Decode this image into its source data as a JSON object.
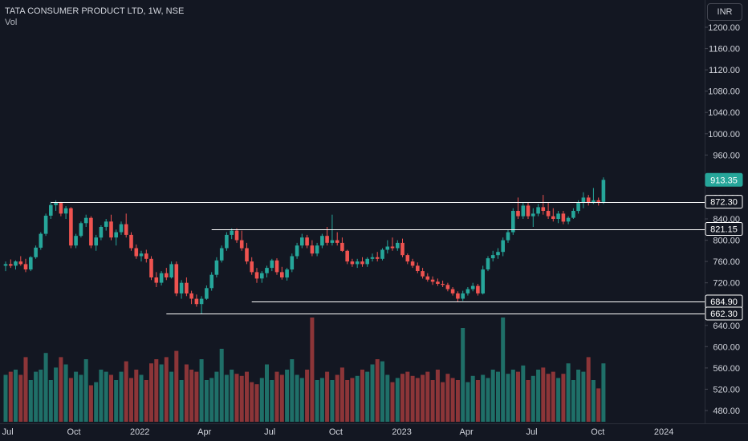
{
  "legend": {
    "symbol": "TATA CONSUMER PRODUCT LTD, 1W, NSE",
    "volume_label": "Vol"
  },
  "currency_button": "INR",
  "colors": {
    "background": "#131722",
    "up": "#26a69a",
    "down": "#ef5350",
    "vol_up": "#1f6f68",
    "vol_down": "#8c3538",
    "level_line": "#ffffff",
    "axis_text": "#d1d4dc"
  },
  "chart_data": {
    "type": "candlestick",
    "interval": "1W",
    "y_axis": {
      "ticks": [
        "1200.00",
        "1160.00",
        "1120.00",
        "1080.00",
        "1040.00",
        "1000.00",
        "960.00",
        "920.00",
        "880.00",
        "840.00",
        "800.00",
        "760.00",
        "720.00",
        "680.00",
        "640.00",
        "600.00",
        "560.00",
        "520.00",
        "480.00"
      ],
      "range": [
        470,
        1230
      ],
      "position": "right"
    },
    "x_axis": {
      "labels": [
        "Jul",
        "Oct",
        "2022",
        "Apr",
        "Jul",
        "Oct",
        "2023",
        "Apr",
        "Jul",
        "Oct",
        "2024"
      ]
    },
    "price_tags": [
      {
        "value": "913.35",
        "type": "last_price"
      },
      {
        "value": "872.30",
        "type": "level"
      },
      {
        "value": "821.15",
        "type": "level"
      },
      {
        "value": "684.90",
        "type": "level"
      },
      {
        "value": "662.30",
        "type": "level"
      }
    ],
    "horizontal_levels": [
      {
        "price": 872.3,
        "from_date": "2021-08-30"
      },
      {
        "price": 821.15,
        "from_date": "2022-04-11"
      },
      {
        "price": 684.9,
        "from_date": "2022-06-06"
      },
      {
        "price": 662.3,
        "from_date": "2022-02-07"
      }
    ],
    "ohlc": [
      [
        "2021-06-28",
        752,
        760,
        742,
        755
      ],
      [
        "2021-07-05",
        755,
        764,
        748,
        752
      ],
      [
        "2021-07-12",
        752,
        762,
        745,
        760
      ],
      [
        "2021-07-19",
        760,
        770,
        752,
        755
      ],
      [
        "2021-07-26",
        755,
        765,
        740,
        745
      ],
      [
        "2021-08-02",
        745,
        770,
        742,
        768
      ],
      [
        "2021-08-09",
        768,
        790,
        765,
        786
      ],
      [
        "2021-08-16",
        786,
        815,
        782,
        812
      ],
      [
        "2021-08-23",
        812,
        850,
        808,
        846
      ],
      [
        "2021-08-30",
        846,
        872,
        840,
        866
      ],
      [
        "2021-09-06",
        866,
        875,
        855,
        870
      ],
      [
        "2021-09-13",
        870,
        872,
        845,
        850
      ],
      [
        "2021-09-20",
        850,
        864,
        840,
        860
      ],
      [
        "2021-09-27",
        860,
        862,
        785,
        790
      ],
      [
        "2021-10-04",
        790,
        812,
        785,
        808
      ],
      [
        "2021-10-11",
        808,
        835,
        805,
        832
      ],
      [
        "2021-10-18",
        832,
        848,
        825,
        842
      ],
      [
        "2021-10-25",
        842,
        845,
        785,
        790
      ],
      [
        "2021-11-01",
        790,
        810,
        780,
        805
      ],
      [
        "2021-11-08",
        805,
        828,
        800,
        825
      ],
      [
        "2021-11-15",
        825,
        840,
        818,
        835
      ],
      [
        "2021-11-22",
        835,
        848,
        800,
        805
      ],
      [
        "2021-11-29",
        805,
        820,
        790,
        815
      ],
      [
        "2021-12-06",
        815,
        835,
        810,
        830
      ],
      [
        "2021-12-13",
        830,
        850,
        805,
        810
      ],
      [
        "2021-12-20",
        810,
        815,
        780,
        785
      ],
      [
        "2021-12-27",
        785,
        792,
        765,
        770
      ],
      [
        "2022-01-03",
        770,
        780,
        760,
        775
      ],
      [
        "2022-01-10",
        775,
        782,
        758,
        765
      ],
      [
        "2022-01-17",
        765,
        770,
        725,
        730
      ],
      [
        "2022-01-24",
        730,
        740,
        712,
        720
      ],
      [
        "2022-01-31",
        720,
        742,
        715,
        738
      ],
      [
        "2022-02-07",
        738,
        748,
        725,
        730
      ],
      [
        "2022-02-14",
        730,
        760,
        728,
        755
      ],
      [
        "2022-02-21",
        755,
        760,
        695,
        700
      ],
      [
        "2022-02-28",
        700,
        725,
        690,
        720
      ],
      [
        "2022-03-07",
        720,
        730,
        695,
        700
      ],
      [
        "2022-03-14",
        700,
        705,
        680,
        690
      ],
      [
        "2022-03-21",
        690,
        698,
        675,
        680
      ],
      [
        "2022-03-28",
        680,
        695,
        662,
        690
      ],
      [
        "2022-04-04",
        690,
        715,
        688,
        710
      ],
      [
        "2022-04-11",
        710,
        740,
        705,
        735
      ],
      [
        "2022-04-18",
        735,
        768,
        730,
        762
      ],
      [
        "2022-04-25",
        762,
        790,
        758,
        785
      ],
      [
        "2022-05-02",
        785,
        815,
        780,
        810
      ],
      [
        "2022-05-09",
        810,
        822,
        802,
        818
      ],
      [
        "2022-05-16",
        818,
        822,
        795,
        800
      ],
      [
        "2022-05-23",
        800,
        818,
        780,
        785
      ],
      [
        "2022-05-30",
        785,
        795,
        755,
        760
      ],
      [
        "2022-06-06",
        760,
        768,
        735,
        740
      ],
      [
        "2022-06-13",
        740,
        748,
        720,
        728
      ],
      [
        "2022-06-20",
        728,
        742,
        720,
        738
      ],
      [
        "2022-06-27",
        738,
        752,
        730,
        748
      ],
      [
        "2022-07-04",
        748,
        765,
        742,
        762
      ],
      [
        "2022-07-11",
        762,
        766,
        735,
        740
      ],
      [
        "2022-07-18",
        740,
        750,
        726,
        730
      ],
      [
        "2022-07-25",
        730,
        748,
        724,
        745
      ],
      [
        "2022-08-01",
        745,
        775,
        740,
        770
      ],
      [
        "2022-08-08",
        770,
        795,
        765,
        790
      ],
      [
        "2022-08-15",
        790,
        812,
        785,
        805
      ],
      [
        "2022-08-22",
        805,
        810,
        785,
        790
      ],
      [
        "2022-08-29",
        790,
        800,
        770,
        775
      ],
      [
        "2022-09-05",
        775,
        795,
        770,
        790
      ],
      [
        "2022-09-12",
        790,
        812,
        785,
        808
      ],
      [
        "2022-09-19",
        808,
        825,
        790,
        795
      ],
      [
        "2022-09-26",
        795,
        848,
        790,
        800
      ],
      [
        "2022-10-03",
        800,
        815,
        790,
        795
      ],
      [
        "2022-10-10",
        795,
        805,
        778,
        780
      ],
      [
        "2022-10-17",
        780,
        782,
        755,
        760
      ],
      [
        "2022-10-24",
        760,
        765,
        750,
        755
      ],
      [
        "2022-10-31",
        755,
        765,
        748,
        760
      ],
      [
        "2022-11-07",
        760,
        768,
        750,
        755
      ],
      [
        "2022-11-14",
        755,
        768,
        750,
        765
      ],
      [
        "2022-11-21",
        765,
        775,
        760,
        768
      ],
      [
        "2022-11-28",
        768,
        778,
        760,
        765
      ],
      [
        "2022-12-05",
        765,
        785,
        762,
        782
      ],
      [
        "2022-12-12",
        782,
        800,
        775,
        788
      ],
      [
        "2022-12-19",
        788,
        805,
        780,
        785
      ],
      [
        "2022-12-26",
        785,
        800,
        780,
        795
      ],
      [
        "2023-01-02",
        795,
        803,
        768,
        772
      ],
      [
        "2023-01-09",
        772,
        775,
        755,
        760
      ],
      [
        "2023-01-16",
        760,
        765,
        748,
        752
      ],
      [
        "2023-01-23",
        752,
        758,
        738,
        742
      ],
      [
        "2023-01-30",
        742,
        748,
        728,
        732
      ],
      [
        "2023-02-06",
        732,
        738,
        722,
        726
      ],
      [
        "2023-02-13",
        726,
        732,
        716,
        722
      ],
      [
        "2023-02-20",
        722,
        728,
        714,
        718
      ],
      [
        "2023-02-27",
        718,
        724,
        712,
        716
      ],
      [
        "2023-03-06",
        716,
        720,
        704,
        708
      ],
      [
        "2023-03-13",
        708,
        712,
        696,
        700
      ],
      [
        "2023-03-20",
        700,
        704,
        684,
        690
      ],
      [
        "2023-03-27",
        690,
        705,
        686,
        700
      ],
      [
        "2023-04-03",
        700,
        712,
        696,
        708
      ],
      [
        "2023-04-10",
        708,
        720,
        704,
        714
      ],
      [
        "2023-04-17",
        714,
        718,
        696,
        700
      ],
      [
        "2023-04-24",
        700,
        752,
        698,
        745
      ],
      [
        "2023-05-01",
        745,
        770,
        742,
        766
      ],
      [
        "2023-05-08",
        766,
        780,
        760,
        772
      ],
      [
        "2023-05-15",
        772,
        785,
        765,
        778
      ],
      [
        "2023-05-22",
        778,
        805,
        770,
        800
      ],
      [
        "2023-05-29",
        800,
        820,
        795,
        815
      ],
      [
        "2023-06-05",
        815,
        860,
        810,
        855
      ],
      [
        "2023-06-12",
        855,
        880,
        840,
        845
      ],
      [
        "2023-06-19",
        845,
        870,
        840,
        865
      ],
      [
        "2023-06-26",
        865,
        870,
        840,
        845
      ],
      [
        "2023-07-03",
        845,
        860,
        825,
        850
      ],
      [
        "2023-07-10",
        850,
        868,
        845,
        862
      ],
      [
        "2023-07-17",
        862,
        885,
        848,
        855
      ],
      [
        "2023-07-24",
        855,
        870,
        840,
        845
      ],
      [
        "2023-07-31",
        845,
        860,
        835,
        840
      ],
      [
        "2023-08-07",
        840,
        855,
        832,
        850
      ],
      [
        "2023-08-14",
        850,
        855,
        830,
        835
      ],
      [
        "2023-08-21",
        835,
        845,
        830,
        842
      ],
      [
        "2023-08-28",
        842,
        860,
        840,
        855
      ],
      [
        "2023-09-04",
        855,
        875,
        850,
        870
      ],
      [
        "2023-09-11",
        870,
        890,
        860,
        880
      ],
      [
        "2023-09-18",
        880,
        885,
        865,
        870
      ],
      [
        "2023-09-25",
        870,
        898,
        868,
        875
      ],
      [
        "2023-10-02",
        875,
        880,
        865,
        872
      ],
      [
        "2023-10-09",
        872,
        918,
        868,
        913.35
      ]
    ],
    "volume_axis_note": "relative bar heights",
    "volume": [
      45,
      48,
      50,
      45,
      62,
      40,
      48,
      50,
      66,
      40,
      52,
      62,
      55,
      42,
      48,
      45,
      60,
      35,
      38,
      50,
      48,
      45,
      40,
      48,
      58,
      42,
      50,
      45,
      40,
      56,
      60,
      55,
      62,
      48,
      68,
      40,
      55,
      50,
      48,
      60,
      40,
      42,
      48,
      70,
      45,
      50,
      46,
      44,
      48,
      38,
      36,
      42,
      55,
      40,
      48,
      45,
      50,
      60,
      45,
      42,
      50,
      100,
      40,
      42,
      48,
      40,
      45,
      52,
      40,
      42,
      44,
      50,
      48,
      55,
      60,
      58,
      45,
      38,
      42,
      46,
      48,
      44,
      42,
      45,
      48,
      40,
      50,
      38,
      46,
      42,
      40,
      90,
      38,
      44,
      40,
      45,
      42,
      50,
      48,
      100,
      46,
      50,
      48,
      54,
      40,
      44,
      50,
      52,
      46,
      48,
      42,
      46,
      56,
      40,
      50,
      48,
      62,
      40,
      32,
      56
    ]
  }
}
